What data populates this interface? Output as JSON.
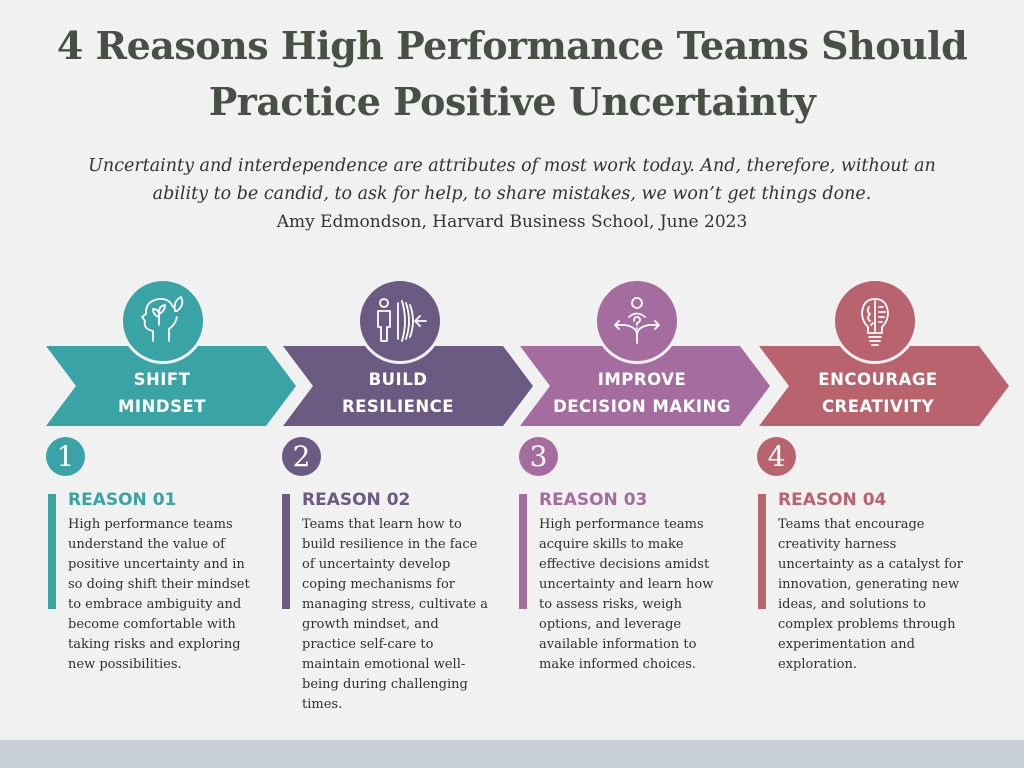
{
  "title_line1": "4 Reasons High Performance Teams Should",
  "title_line2": "Practice Positive Uncertainty",
  "quote": {
    "line1": "Uncertainty and interdependence are attributes of most work today. And, therefore, without an",
    "line2": "ability to be candid, to ask for help, to share mistakes, we won’t get things done.",
    "attribution": "Amy Edmondson, Harvard Business School, June 2023"
  },
  "colors": {
    "teal": "#3aa3a6",
    "purple": "#6b5b82",
    "mauve": "#a56d9f",
    "rose": "#b9636f",
    "title": "#475044",
    "background": "#f0f1f0"
  },
  "steps": [
    {
      "line1": "SHIFT",
      "line2": "MINDSET",
      "number": "1",
      "reason_title": "REASON 01",
      "icon": "mind-growth-icon",
      "text": "High performance teams understand the value of positive uncertainty and in so doing shift their mindset to embrace ambiguity and become comfortable with taking risks and exploring new possibilities."
    },
    {
      "line1": "BUILD",
      "line2": "RESILIENCE",
      "number": "2",
      "reason_title": "REASON 02",
      "icon": "person-resilience-icon",
      "text": "Teams that learn how to build resilience in the face of uncertainty develop coping mechanisms for managing stress, cultivate a growth mindset, and practice self-care to maintain emotional well-being during challenging times."
    },
    {
      "line1": "IMPROVE",
      "line2": "DECISION MAKING",
      "number": "3",
      "reason_title": "REASON 03",
      "icon": "decision-arrows-icon",
      "text": "High performance teams acquire skills to make effective decisions amidst uncertainty and learn how to assess risks, weigh options, and leverage available information to make informed choices."
    },
    {
      "line1": "ENCOURAGE",
      "line2": "CREATIVITY",
      "number": "4",
      "reason_title": "REASON 04",
      "icon": "lightbulb-brain-icon",
      "text": "Teams that encourage creativity harness uncertainty as a catalyst for innovation, generating new ideas, and solutions to complex problems through experimentation and exploration."
    }
  ]
}
